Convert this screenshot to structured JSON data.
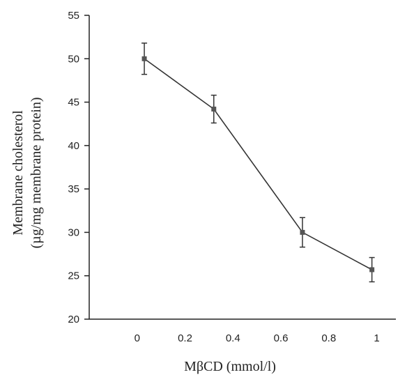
{
  "chart_data": {
    "type": "line",
    "title": "",
    "xlabel": "MβCD (mmol/l)",
    "ylabel_line1": "Membrane cholesterol",
    "ylabel_line2": "(µg/mg membrane protein)",
    "xlim": [
      -0.2,
      1.08
    ],
    "ylim": [
      20,
      55
    ],
    "x_ticks": [
      0,
      0.2,
      0.4,
      0.6,
      0.8,
      1
    ],
    "x_tick_labels": [
      "0",
      "0.2",
      "0.4",
      "0.6",
      "0.8",
      "1"
    ],
    "y_ticks": [
      20,
      25,
      30,
      35,
      40,
      45,
      50,
      55
    ],
    "y_tick_labels": [
      "20",
      "25",
      "30",
      "35",
      "40",
      "45",
      "50",
      "55"
    ],
    "grid": false,
    "series": [
      {
        "x": [
          0.03,
          0.32,
          0.69,
          0.98
        ],
        "y": [
          50.0,
          44.2,
          30.0,
          25.7
        ],
        "error": [
          1.8,
          1.6,
          1.7,
          1.4
        ],
        "color": "#333333",
        "marker": "square"
      }
    ]
  }
}
